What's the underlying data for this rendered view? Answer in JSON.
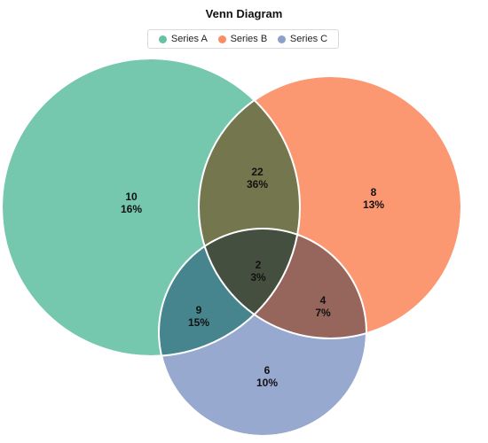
{
  "chart_data": {
    "type": "venn",
    "title": "Venn Diagram",
    "sets": [
      {
        "name": "Series A",
        "color": "#66c2a5"
      },
      {
        "name": "Series B",
        "color": "#fc8d62"
      },
      {
        "name": "Series C",
        "color": "#8da0cb"
      }
    ],
    "regions": [
      {
        "sets": [
          "Series A"
        ],
        "value": 10,
        "percent": "16%"
      },
      {
        "sets": [
          "Series B"
        ],
        "value": 8,
        "percent": "13%"
      },
      {
        "sets": [
          "Series C"
        ],
        "value": 6,
        "percent": "10%"
      },
      {
        "sets": [
          "Series A",
          "Series B"
        ],
        "value": 22,
        "percent": "36%"
      },
      {
        "sets": [
          "Series A",
          "Series C"
        ],
        "value": 9,
        "percent": "15%"
      },
      {
        "sets": [
          "Series B",
          "Series C"
        ],
        "value": 4,
        "percent": "7%"
      },
      {
        "sets": [
          "Series A",
          "Series B",
          "Series C"
        ],
        "value": 2,
        "percent": "3%"
      }
    ],
    "legend_position": "top-center"
  }
}
